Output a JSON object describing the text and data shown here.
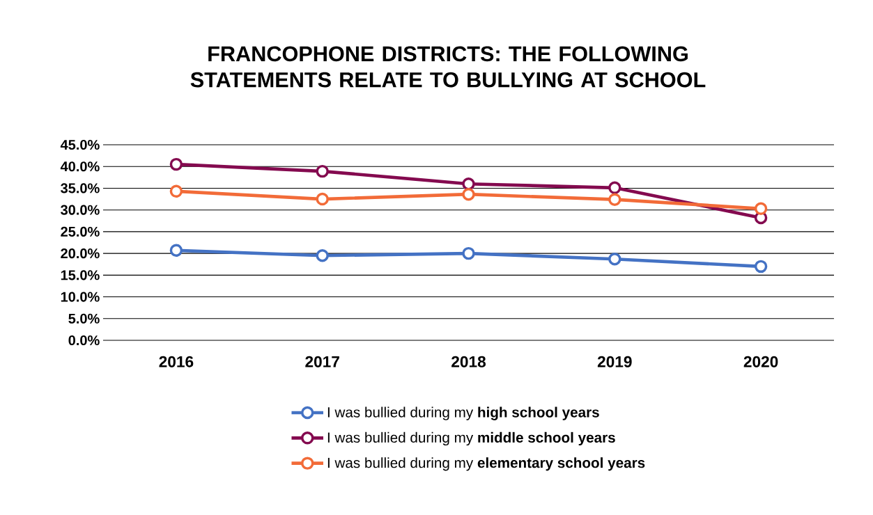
{
  "chart_data": {
    "type": "line",
    "title": "FRANCOPHONE DISTRICTS: THE FOLLOWING STATEMENTS RELATE TO BULLYING AT SCHOOL",
    "categories": [
      "2016",
      "2017",
      "2018",
      "2019",
      "2020"
    ],
    "series": [
      {
        "name": "I was bullied during my **high school years**",
        "color": "#4472c4",
        "values": [
          20.7,
          19.5,
          20.0,
          18.7,
          17.0
        ]
      },
      {
        "name": "I was bullied during my **middle school years**",
        "color": "#840a4f",
        "values": [
          40.5,
          38.9,
          36.0,
          35.1,
          28.2
        ]
      },
      {
        "name": "I was bullied during my **elementary school years**",
        "color": "#f26b38",
        "values": [
          34.3,
          32.5,
          33.6,
          32.4,
          30.3
        ]
      }
    ],
    "ylim": [
      0,
      45
    ],
    "yticks": [
      {
        "value": 0,
        "label": "0.0%"
      },
      {
        "value": 5,
        "label": "5.0%"
      },
      {
        "value": 10,
        "label": "10.0%"
      },
      {
        "value": 15,
        "label": "15.0%"
      },
      {
        "value": 20,
        "label": "20.0%"
      },
      {
        "value": 25,
        "label": "25.0%"
      },
      {
        "value": 30,
        "label": "30.0%"
      },
      {
        "value": 35,
        "label": "35.0%"
      },
      {
        "value": 40,
        "label": "40.0%"
      },
      {
        "value": 45,
        "label": "45.0%"
      }
    ],
    "grid": "y",
    "legend": "bottom",
    "marker": "circle",
    "line_style": "solid"
  }
}
